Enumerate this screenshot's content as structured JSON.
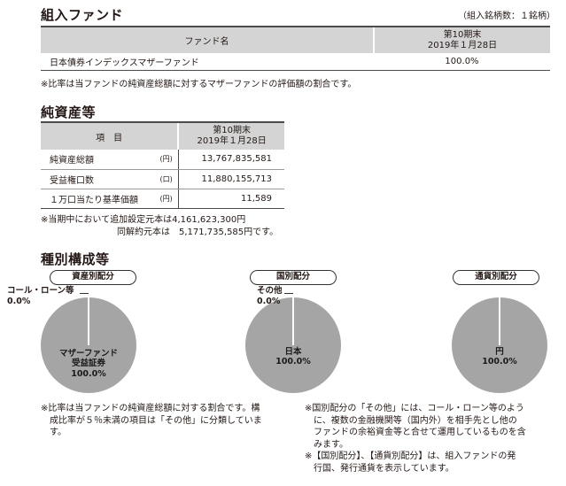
{
  "section1": {
    "title": "組入ファンド",
    "count_note": "（組入銘柄数：１銘柄）",
    "header_name": "ファンド名",
    "header_period": "第10期末",
    "header_date": "2019年１月28日",
    "rows": [
      {
        "name": "日本債券インデックスマザーファンド",
        "value": "100.0%"
      }
    ],
    "note": "※比率は当ファンドの純資産総額に対するマザーファンドの評価額の割合です。"
  },
  "section2": {
    "title": "純資産等",
    "header_item": "項　目",
    "header_period": "第10期末",
    "header_date": "2019年１月28日",
    "rows": [
      {
        "label": "純資産総額",
        "unit": "(円)",
        "value": "13,767,835,581"
      },
      {
        "label": "受益権口数",
        "unit": "(口)",
        "value": "11,880,155,713"
      },
      {
        "label": "１万口当たり基準価額",
        "unit": "(円)",
        "value": "11,589"
      }
    ],
    "note1": "※当期中において追加設定元本は4,161,623,300円",
    "note2": "同解約元本は　5,171,735,585円です。"
  },
  "section3": {
    "title": "種別構成等",
    "pies": [
      {
        "title": "資産別配分",
        "main_label_1": "マザーファンド",
        "main_label_2": "受益証券",
        "main_value": "100.0%",
        "side_label": "コール・ローン等",
        "side_value": "0.0%"
      },
      {
        "title": "国別配分",
        "main_label_1": "日本",
        "main_value": "100.0%",
        "side_label": "その他",
        "side_value": "0.0%"
      },
      {
        "title": "通貨別配分",
        "main_label_1": "円",
        "main_value": "100.0%"
      }
    ],
    "note_left": [
      "※比率は当ファンドの純資産総額に対する割合です。構",
      "成比率が５％未満の項目は「その他」に分類していま",
      "す。"
    ],
    "note_right1": [
      "※国別配分の「その他」には、コール・ローン等のよう",
      "に、複数の金融機関等（国内外）を相手先とし他の",
      "ファンドの余裕資金等と合せて運用しているものを含",
      "みます。"
    ],
    "note_right2": [
      "※【国別配分】、【通貨別配分】は、組入ファンドの発",
      "行国、発行通貨を表示しています。"
    ]
  },
  "colors": {
    "header_bg": "#d4d4d4",
    "pie_fill": "#a5a5a5",
    "rule": "#4b4b4b"
  }
}
